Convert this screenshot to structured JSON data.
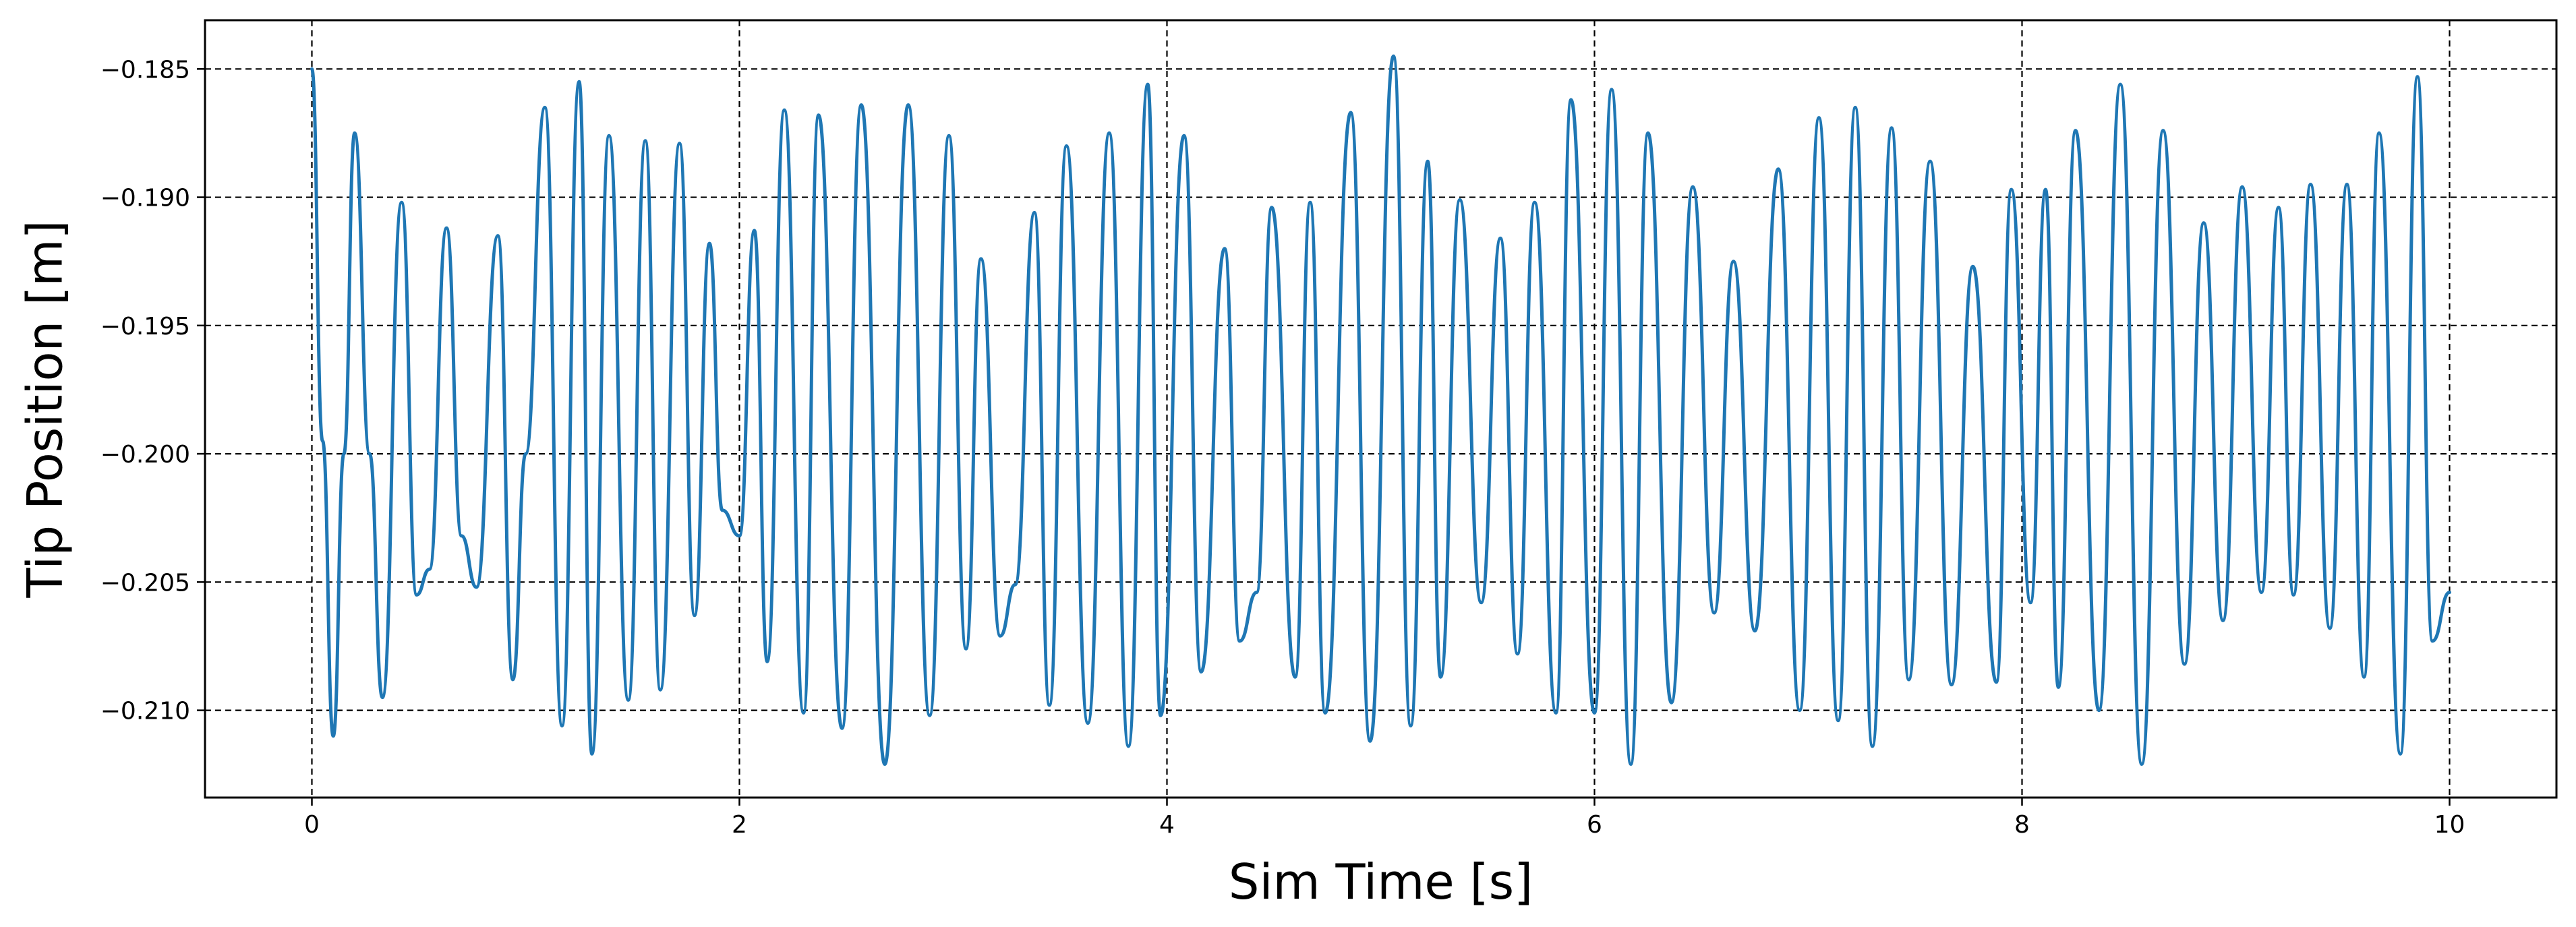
{
  "chart_data": {
    "type": "line",
    "title": "",
    "xlabel": "Sim Time [s]",
    "ylabel": "Tip Position [m]",
    "xlim": [
      -0.5,
      10.5
    ],
    "ylim": [
      -0.2134,
      -0.1831
    ],
    "xticks": [
      0,
      2,
      4,
      6,
      8,
      10
    ],
    "xtick_labels": [
      "0",
      "2",
      "4",
      "6",
      "8",
      "10"
    ],
    "yticks": [
      -0.185,
      -0.19,
      -0.195,
      -0.2,
      -0.205,
      -0.21
    ],
    "ytick_labels": [
      "−0.185",
      "−0.190",
      "−0.195",
      "−0.200",
      "−0.205",
      "−0.210"
    ],
    "grid": true,
    "grid_style": "dashed",
    "line_color": "#1f77b4",
    "grid_color": "#000000",
    "series": [
      {
        "x": [
          0.0,
          0.05,
          0.1,
          0.15,
          0.2,
          0.27,
          0.33,
          0.42,
          0.49,
          0.55,
          0.63,
          0.7,
          0.77,
          0.87,
          0.94,
          1.0,
          1.09,
          1.17,
          1.25,
          1.31,
          1.39,
          1.48,
          1.56,
          1.63,
          1.72,
          1.79,
          1.86,
          1.92,
          2.0,
          2.07,
          2.13,
          2.21,
          2.3,
          2.37,
          2.48,
          2.57,
          2.68,
          2.79,
          2.89,
          2.98,
          3.06,
          3.13,
          3.22,
          3.29,
          3.38,
          3.45,
          3.53,
          3.63,
          3.73,
          3.82,
          3.91,
          3.97,
          4.08,
          4.16,
          4.27,
          4.34,
          4.42,
          4.49,
          4.6,
          4.67,
          4.74,
          4.86,
          4.95,
          5.06,
          5.14,
          5.22,
          5.28,
          5.37,
          5.47,
          5.56,
          5.64,
          5.72,
          5.82,
          5.89,
          6.0,
          6.08,
          6.17,
          6.25,
          6.36,
          6.46,
          6.56,
          6.65,
          6.75,
          6.86,
          6.96,
          7.05,
          7.14,
          7.22,
          7.3,
          7.39,
          7.47,
          7.57,
          7.67,
          7.77,
          7.88,
          7.95,
          8.04,
          8.11,
          8.17,
          8.25,
          8.36,
          8.46,
          8.56,
          8.66,
          8.76,
          8.85,
          8.94,
          9.03,
          9.12,
          9.2,
          9.27,
          9.35,
          9.44,
          9.52,
          9.6,
          9.67,
          9.77,
          9.85,
          9.92,
          10.0
        ],
        "y": [
          -0.185,
          -0.1995,
          -0.211,
          -0.2,
          -0.1875,
          -0.2,
          -0.2095,
          -0.1902,
          -0.2055,
          -0.2045,
          -0.1912,
          -0.2032,
          -0.2052,
          -0.1915,
          -0.2088,
          -0.2,
          -0.1865,
          -0.2106,
          -0.1855,
          -0.2117,
          -0.1876,
          -0.2096,
          -0.1878,
          -0.2092,
          -0.1879,
          -0.2063,
          -0.1918,
          -0.2022,
          -0.2032,
          -0.1913,
          -0.2081,
          -0.1866,
          -0.2101,
          -0.1868,
          -0.2107,
          -0.1864,
          -0.2121,
          -0.1864,
          -0.2102,
          -0.1876,
          -0.2076,
          -0.1924,
          -0.2071,
          -0.2051,
          -0.1906,
          -0.2098,
          -0.188,
          -0.2105,
          -0.1875,
          -0.2114,
          -0.1856,
          -0.2102,
          -0.1876,
          -0.2085,
          -0.192,
          -0.2073,
          -0.2054,
          -0.1904,
          -0.2087,
          -0.1902,
          -0.2101,
          -0.1867,
          -0.2112,
          -0.1845,
          -0.2106,
          -0.1886,
          -0.2087,
          -0.1901,
          -0.2058,
          -0.1916,
          -0.2078,
          -0.1902,
          -0.2101,
          -0.1862,
          -0.2101,
          -0.1858,
          -0.2121,
          -0.1875,
          -0.2097,
          -0.1896,
          -0.2062,
          -0.1925,
          -0.2069,
          -0.1889,
          -0.21,
          -0.1869,
          -0.2104,
          -0.1865,
          -0.2114,
          -0.1873,
          -0.2088,
          -0.1886,
          -0.209,
          -0.1927,
          -0.2089,
          -0.1897,
          -0.2058,
          -0.1897,
          -0.2091,
          -0.1874,
          -0.21,
          -0.1856,
          -0.2121,
          -0.1874,
          -0.2082,
          -0.191,
          -0.2065,
          -0.1896,
          -0.2054,
          -0.1904,
          -0.2055,
          -0.1895,
          -0.2068,
          -0.1895,
          -0.2087,
          -0.1875,
          -0.2117,
          -0.1853,
          -0.2073,
          -0.2054
        ]
      }
    ]
  }
}
